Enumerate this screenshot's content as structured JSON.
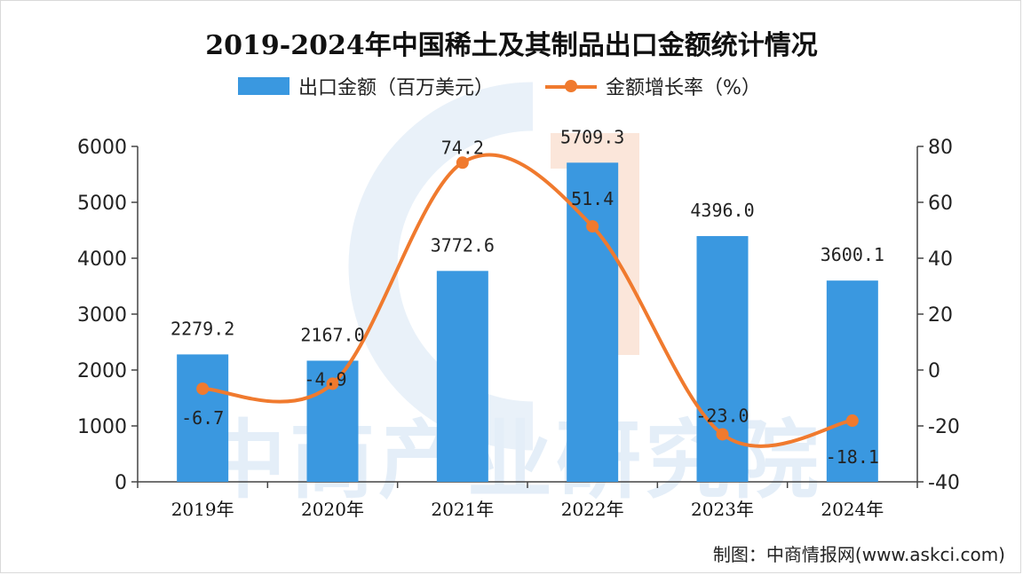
{
  "title": "2019-2024年中国稀土及其制品出口金额统计情况",
  "legend": {
    "bar": "出口金额（百万美元）",
    "line": "金额增长率（%）"
  },
  "watermark": "中商产业研究院",
  "credit": "制图：中商情报网(www.askci.com)",
  "colors": {
    "bar": "#3a98e0",
    "line": "#f07a2e"
  },
  "chart_data": {
    "type": "bar",
    "title": "2019-2024年中国稀土及其制品出口金额统计情况",
    "categories": [
      "2019年",
      "2020年",
      "2021年",
      "2022年",
      "2023年",
      "2024年"
    ],
    "series": [
      {
        "name": "出口金额（百万美元）",
        "type": "bar",
        "axis": "left",
        "values": [
          2279.2,
          2167.0,
          3772.6,
          5709.3,
          4396.0,
          3600.1
        ],
        "labels": [
          "2279.2",
          "2167.0",
          "3772.6",
          "5709.3",
          "4396.0",
          "3600.1"
        ]
      },
      {
        "name": "金额增长率（%）",
        "type": "line",
        "axis": "right",
        "values": [
          -6.7,
          -4.9,
          74.2,
          51.4,
          -23.0,
          -18.1
        ],
        "labels": [
          "-6.7",
          "-4.9",
          "74.2",
          "51.4",
          "-23.0",
          "-18.1"
        ]
      }
    ],
    "y_left": {
      "ylim": [
        0,
        6000
      ],
      "ticks": [
        "0",
        "1000",
        "2000",
        "3000",
        "4000",
        "5000",
        "6000"
      ]
    },
    "y_right": {
      "ylim": [
        -40,
        80
      ],
      "ticks": [
        "-40",
        "-20",
        "0",
        "20",
        "40",
        "60",
        "80"
      ]
    },
    "grid": false,
    "legend_position": "top"
  }
}
